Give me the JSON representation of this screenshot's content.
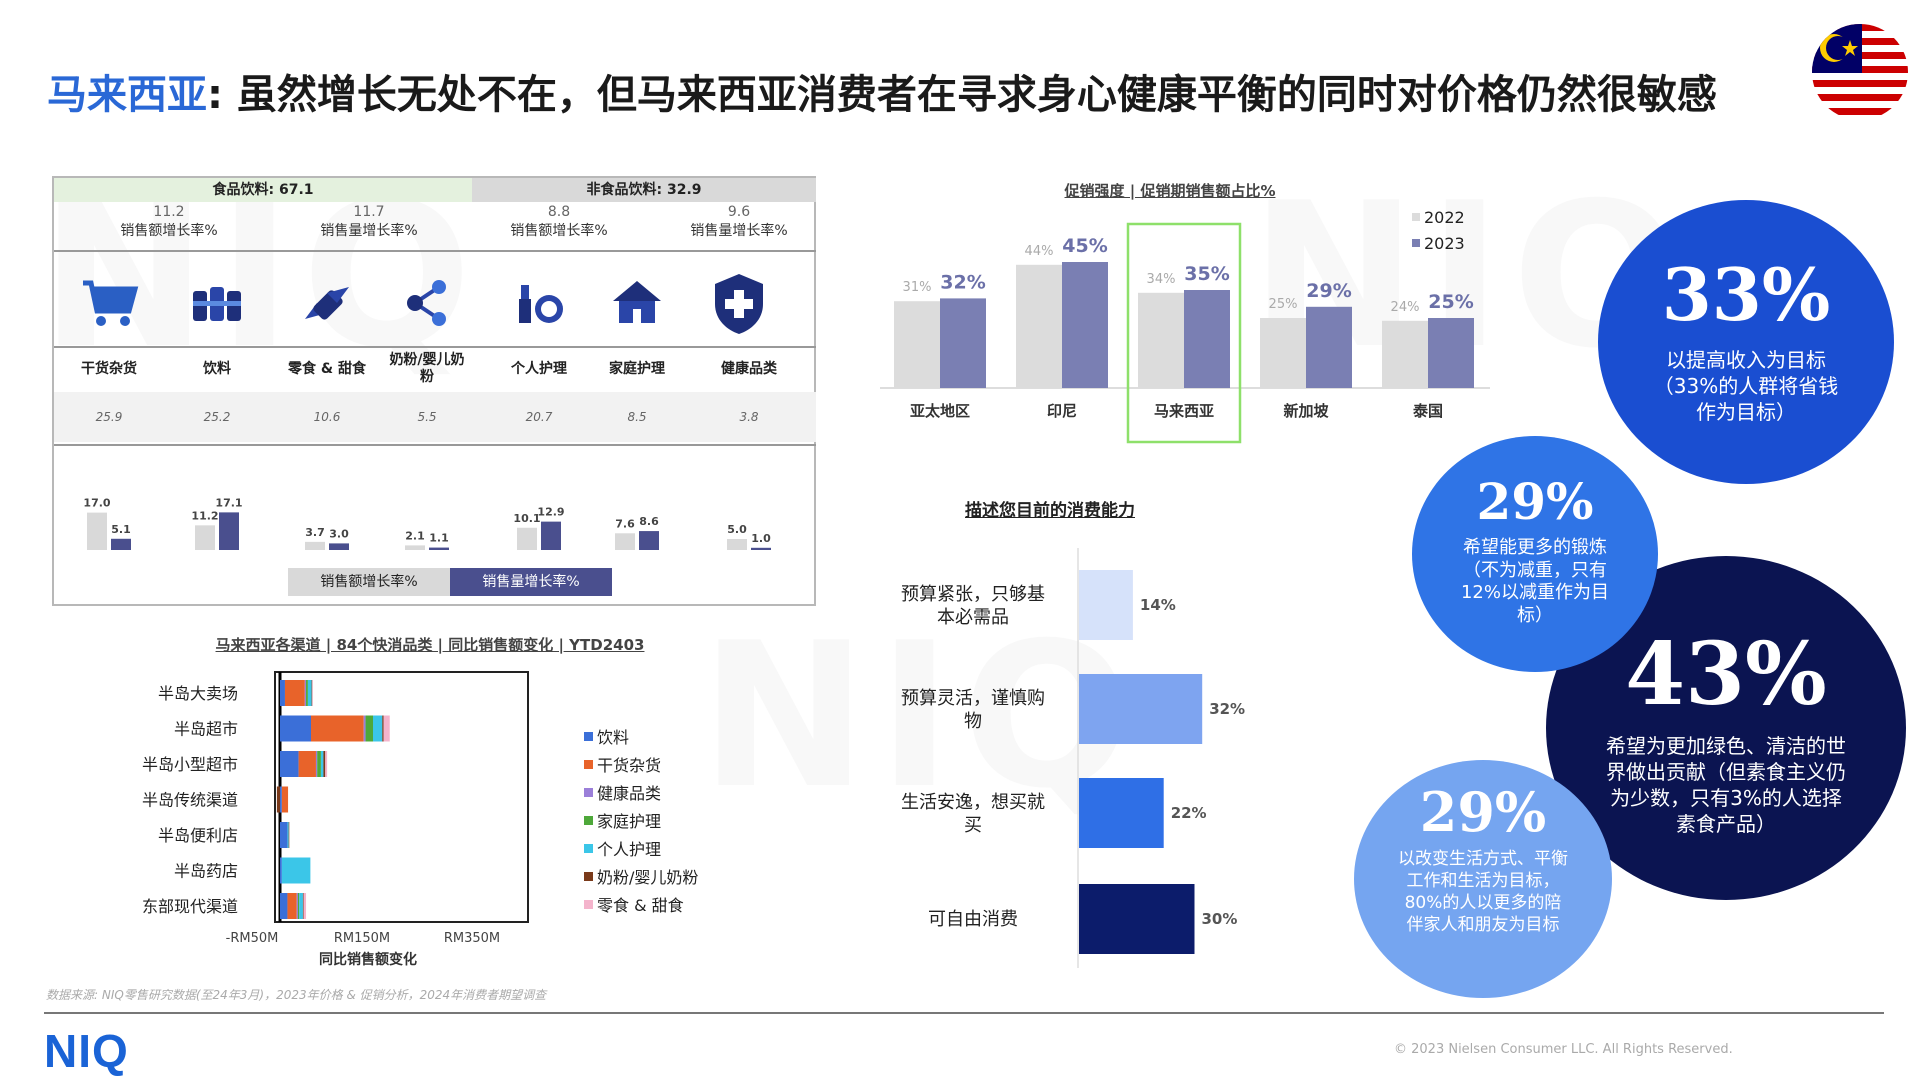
{
  "header": {
    "title_highlight": "马来西亚",
    "title_rest": ": 虽然增长无处不在，但马来西亚消费者在寻求身心健康平衡的同时对价格仍然很敏感",
    "flag_icon": "malaysia-flag-icon"
  },
  "category_table": {
    "group_food_label": "食品饮料: 67.1",
    "group_nonfood_label": "非食品饮料: 32.9",
    "kpis": [
      {
        "value": "11.2",
        "label": "销售额增长率%"
      },
      {
        "value": "11.7",
        "label": "销售量增长率%"
      },
      {
        "value": "8.8",
        "label": "销售额增长率%"
      },
      {
        "value": "9.6",
        "label": "销售量增长率%"
      }
    ],
    "categories": [
      {
        "name": "干货杂货",
        "share": "25.9",
        "icon": "shopping-cart-icon"
      },
      {
        "name": "饮料",
        "share": "25.2",
        "icon": "cans-icon"
      },
      {
        "name": "零食 & 甜食",
        "share": "10.6",
        "icon": "candy-icon"
      },
      {
        "name": "奶粉/婴儿奶粉",
        "share": "5.5",
        "icon": "molecule-icon"
      },
      {
        "name": "个人护理",
        "share": "20.7",
        "icon": "cosmetics-icon"
      },
      {
        "name": "家庭护理",
        "share": "8.5",
        "icon": "house-icon"
      },
      {
        "name": "健康品类",
        "share": "3.8",
        "icon": "health-shield-icon"
      }
    ],
    "legend_value": "销售额增长率%",
    "legend_volume": "销售量增长率%",
    "colors": {
      "value": "#d9d9d9",
      "volume": "#4a4f8e"
    }
  },
  "promo": {
    "title": "促销强度 | 促销期销售额占比%",
    "legend": [
      "2022",
      "2023"
    ],
    "colors": {
      "2022": "#dcdcdc",
      "2023": "#7a7fb3"
    },
    "highlight": "马来西亚"
  },
  "channel": {
    "title": "马来西亚各渠道 | 84个快消品类 | 同比销售额变化 |  YTD2403",
    "xticks": [
      "-RM50M",
      "RM150M",
      "RM350M"
    ],
    "xlabel": "同比销售额变化",
    "colors": {
      "饮料": "#3b6fd8",
      "干货杂货": "#e8632a",
      "健康品类": "#9b7fd9",
      "家庭护理": "#4ea83a",
      "个人护理": "#3bc6e8",
      "奶粉/婴儿奶粉": "#7a3a1a",
      "零食 & 甜食": "#f4b4cc"
    }
  },
  "capacity": {
    "title": "描述您目前的消费能力",
    "colors": [
      "#d6e2fa",
      "#7ea4f0",
      "#2f6fe6",
      "#0c1c6b"
    ]
  },
  "circles": [
    {
      "pct": "33%",
      "text": "以提高收入为目标（33%的人群将省钱作为目标）"
    },
    {
      "pct": "29%",
      "text": "希望能更多的锻炼（不为减重，只有12%以减重作为目标）"
    },
    {
      "pct": "43%",
      "text": "希望为更加绿色、清洁的世界做出贡献（但素食主义仍为少数，只有3%的人选择素食产品）"
    },
    {
      "pct": "29%",
      "text": "以改变生活方式、平衡工作和生活为目标，80%的人以更多的陪伴家人和朋友为目标"
    }
  ],
  "footer": {
    "source": "数据来源: NIQ零售研究数据(至24年3月)，2023年价格 & 促销分析，2024年消费者期望调查",
    "logo": "NIQ",
    "copyright": "© 2023 Nielsen Consumer LLC. All Rights Reserved."
  },
  "chart_data": [
    {
      "type": "bar",
      "title": "",
      "categories": [
        "干货杂货",
        "饮料",
        "零食 & 甜食",
        "奶粉/婴儿奶粉",
        "个人护理",
        "家庭护理",
        "健康品类"
      ],
      "series": [
        {
          "name": "销售额增长率%",
          "values": [
            17.0,
            11.2,
            3.7,
            2.1,
            10.1,
            7.6,
            5.0
          ]
        },
        {
          "name": "销售量增长率%",
          "values": [
            5.1,
            17.1,
            3.0,
            1.1,
            12.9,
            8.6,
            1.0
          ]
        }
      ]
    },
    {
      "type": "bar",
      "title": "促销强度 | 促销期销售额占比%",
      "categories": [
        "亚太地区",
        "印尼",
        "马来西亚",
        "新加坡",
        "泰国"
      ],
      "series": [
        {
          "name": "2022",
          "values": [
            31,
            44,
            34,
            25,
            24
          ]
        },
        {
          "name": "2023",
          "values": [
            32,
            45,
            35,
            29,
            25
          ]
        }
      ],
      "unit": "%"
    },
    {
      "type": "bar",
      "orientation": "horizontal-stacked",
      "title": "马来西亚各渠道 | 84个快消品类 | 同比销售额变化 |  YTD2403",
      "xlabel": "同比销售额变化",
      "categories": [
        "半岛大卖场",
        "半岛超市",
        "半岛小型超市",
        "半岛传统渠道",
        "半岛便利店",
        "半岛药店",
        "东部现代渠道"
      ],
      "series": [
        {
          "name": "饮料",
          "values": [
            8,
            50,
            30,
            3,
            12,
            3,
            12
          ]
        },
        {
          "name": "干货杂货",
          "values": [
            32,
            85,
            28,
            10,
            0,
            0,
            15
          ]
        },
        {
          "name": "健康品类",
          "values": [
            2,
            3,
            2,
            0,
            0,
            0,
            2
          ]
        },
        {
          "name": "家庭护理",
          "values": [
            3,
            12,
            6,
            0,
            0,
            0,
            2
          ]
        },
        {
          "name": "个人护理",
          "values": [
            6,
            15,
            4,
            0,
            2,
            46,
            6
          ]
        },
        {
          "name": "奶粉/婴儿奶粉",
          "values": [
            1,
            2,
            3,
            -5,
            1,
            0,
            1
          ]
        },
        {
          "name": "零食 & 甜食",
          "values": [
            1,
            10,
            3,
            0,
            0,
            0,
            4
          ]
        }
      ]
    },
    {
      "type": "bar",
      "orientation": "horizontal",
      "title": "描述您目前的消费能力",
      "categories": [
        "预算紧张，只够基本必需品",
        "预算灵活，谨慎购物",
        "生活安逸，想买就买",
        "可自由消费"
      ],
      "values": [
        14,
        32,
        22,
        30
      ],
      "unit": "%"
    }
  ]
}
